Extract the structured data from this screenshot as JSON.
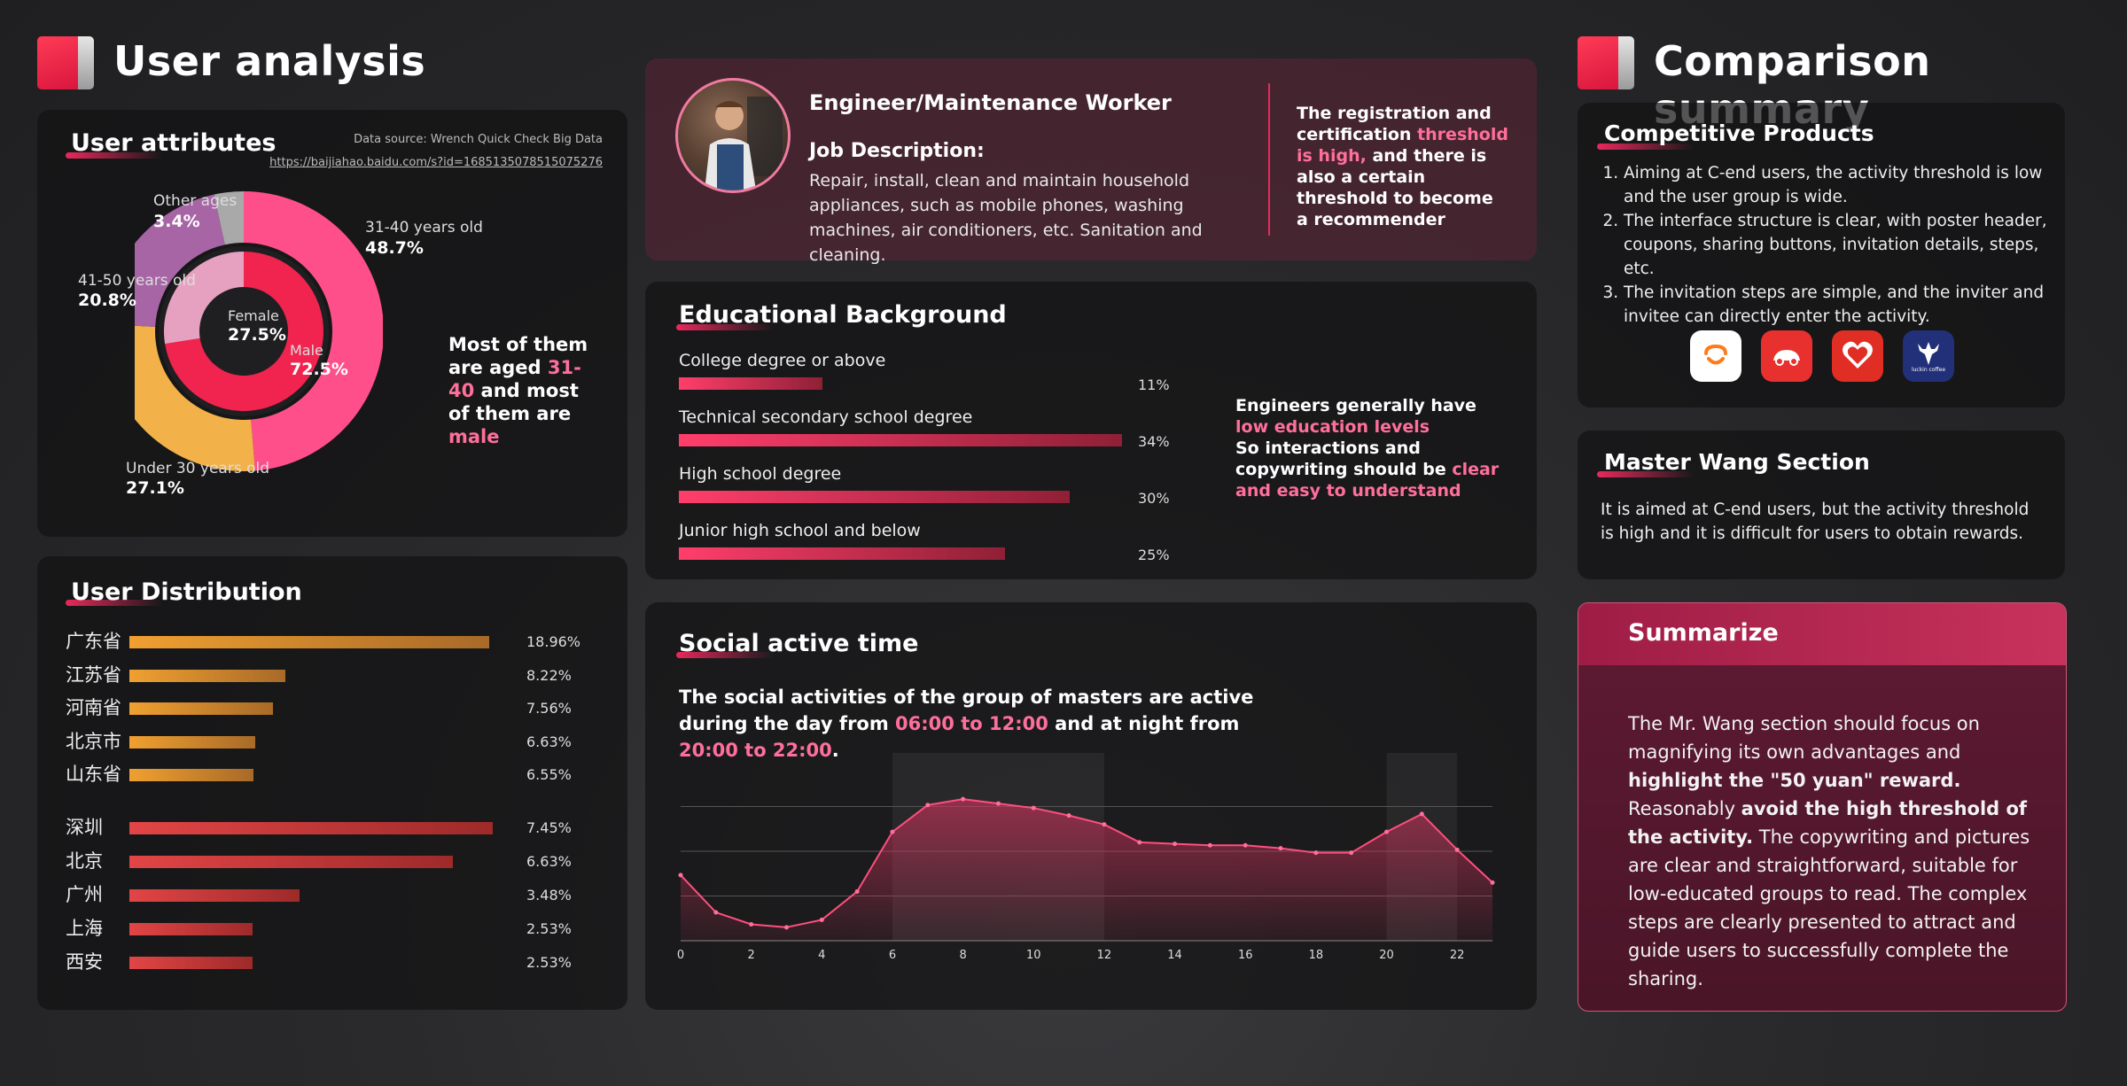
{
  "left_header": {
    "title": "User analysis"
  },
  "right_header": {
    "title": "Comparison summary"
  },
  "user_attributes": {
    "title": "User attributes",
    "source": "Data source: Wrench Quick Check Big Data",
    "link": "https://baijiahao.baidu.com/s?id=1685135078515075276",
    "age_segments": [
      {
        "label": "31-40 years old",
        "value": "48.7%",
        "fraction": 0.487,
        "color": "#ff4f8b"
      },
      {
        "label": "Under 30 years old",
        "value": "27.1%",
        "fraction": 0.271,
        "color": "#f3b14a"
      },
      {
        "label": "41-50 years old",
        "value": "20.8%",
        "fraction": 0.208,
        "color": "#a765a6"
      },
      {
        "label": "Other ages",
        "value": "3.4%",
        "fraction": 0.034,
        "color": "#a9a9a9"
      }
    ],
    "gender_segments": [
      {
        "label": "Male",
        "value": "72.5%",
        "fraction": 0.725,
        "color": "#f0244f"
      },
      {
        "label": "Female",
        "value": "27.5%",
        "fraction": 0.275,
        "color": "#e7a1c0"
      }
    ],
    "summary": {
      "part1": "Most of them are aged ",
      "hl1": "31-40",
      "part2": " and most of them are ",
      "hl2": "male"
    }
  },
  "user_distribution": {
    "title": "User Distribution",
    "provinces": [
      {
        "name": "广东省",
        "value": "18.96%",
        "num": 18.96
      },
      {
        "name": "江苏省",
        "value": "8.22%",
        "num": 8.22
      },
      {
        "name": "河南省",
        "value": "7.56%",
        "num": 7.56
      },
      {
        "name": "北京市",
        "value": "6.63%",
        "num": 6.63
      },
      {
        "name": "山东省",
        "value": "6.55%",
        "num": 6.55
      }
    ],
    "cities": [
      {
        "name": "深圳",
        "value": "7.45%",
        "num": 7.45
      },
      {
        "name": "北京",
        "value": "6.63%",
        "num": 6.63
      },
      {
        "name": "广州",
        "value": "3.48%",
        "num": 3.48
      },
      {
        "name": "上海",
        "value": "2.53%",
        "num": 2.53
      },
      {
        "name": "西安",
        "value": "2.53%",
        "num": 2.53
      }
    ]
  },
  "job": {
    "title": "Engineer/Maintenance Worker",
    "desc_label": "Job Description:",
    "desc": "Repair, install, clean and maintain household appliances, such as mobile phones, washing machines, air conditioners, etc. Sanitation and cleaning.",
    "note": {
      "p1": "The registration and certification ",
      "hl": "threshold is high,",
      "p2": " and there is also a certain threshold to become a recommender"
    }
  },
  "education": {
    "title": "Educational Background",
    "items": [
      {
        "label": "College degree or above",
        "value": "11%",
        "num": 11
      },
      {
        "label": "Technical secondary school degree",
        "value": "34%",
        "num": 34
      },
      {
        "label": "High school degree",
        "value": "30%",
        "num": 30
      },
      {
        "label": "Junior high school and below",
        "value": "25%",
        "num": 25
      }
    ],
    "note": {
      "p1": "Engineers generally have ",
      "hl1": "low education levels",
      "p2": "So interactions and copywriting should be ",
      "hl2": "clear and easy to understand"
    }
  },
  "social": {
    "title": "Social active time",
    "desc": {
      "p1": "The social activities of the group of masters are active during the day from ",
      "hl1": "06:00 to 12:00",
      "p2": " and at night from ",
      "hl2": "20:00 to 22:00",
      "p3": "."
    }
  },
  "chart_data": {
    "type": "area",
    "x": [
      0,
      1,
      2,
      3,
      4,
      5,
      6,
      7,
      8,
      9,
      10,
      11,
      12,
      13,
      14,
      15,
      16,
      17,
      18,
      19,
      20,
      21,
      22,
      23
    ],
    "values": [
      4.4,
      1.9,
      1.1,
      0.9,
      1.4,
      3.3,
      7.3,
      9.1,
      9.5,
      9.2,
      8.9,
      8.4,
      7.8,
      6.6,
      6.5,
      6.4,
      6.4,
      6.2,
      5.9,
      5.9,
      7.3,
      8.5,
      6.1,
      3.9
    ],
    "xticks": [
      "0",
      "2",
      "4",
      "6",
      "8",
      "10",
      "12",
      "14",
      "16",
      "18",
      "20",
      "22"
    ],
    "ylim": [
      0,
      12
    ],
    "highlight_ranges": [
      [
        6,
        12
      ],
      [
        20,
        22
      ]
    ],
    "grid": true
  },
  "competitive": {
    "title": "Competitive Products",
    "items": [
      "Aiming at C-end users, the activity threshold is low and the user group is wide.",
      "The interface structure is clear, with poster header, coupons, sharing buttons, invitation details, steps, etc.",
      "The invitation steps are simple, and the inviter and invitee can directly enter the activity."
    ],
    "apps": [
      {
        "icon": "didi-app-icon"
      },
      {
        "icon": "car-app-icon"
      },
      {
        "icon": "pinduoduo-app-icon"
      },
      {
        "icon": "luckin-coffee-app-icon",
        "text": "luckin coffee"
      }
    ]
  },
  "master_wang": {
    "title": "Master Wang Section",
    "text": "It is aimed at C-end users, but the activity threshold is high and it is difficult for users to obtain rewards."
  },
  "summarize": {
    "title": "Summarize",
    "t1": "The Mr. Wang section should focus on magnifying its own advantages and ",
    "b1": "highlight the \"50 yuan\" reward.",
    "t2": " Reasonably ",
    "b2": "avoid the high threshold of the activity.",
    "t3": " The copywriting and pictures are clear and straightforward, suitable for low-educated groups to read. The complex steps are clearly presented to attract and guide users to successfully complete the sharing."
  }
}
